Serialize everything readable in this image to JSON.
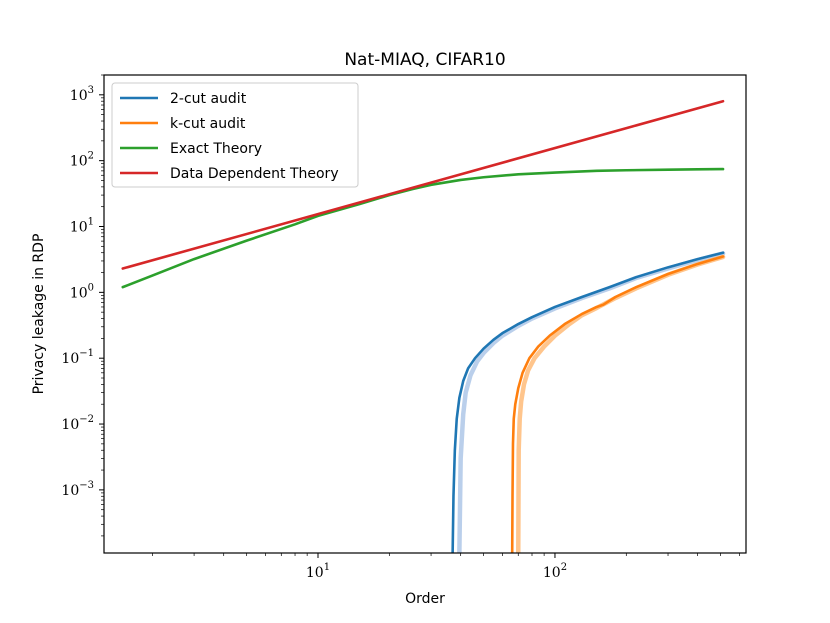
{
  "chart_data": {
    "type": "line",
    "title": "Nat-MIAQ, CIFAR10",
    "xlabel": "Order",
    "ylabel": "Privacy leakage in RDP",
    "xscale": "log",
    "yscale": "log",
    "xlim": [
      1.25,
      640
    ],
    "ylim": [
      0.00011,
      2000
    ],
    "grid": false,
    "legend_position": "top-left",
    "xticks": [
      {
        "value": 10,
        "base": "10",
        "exp": "1"
      },
      {
        "value": 100,
        "base": "10",
        "exp": "2"
      }
    ],
    "yticks": [
      {
        "value": 0.001,
        "base": "10",
        "exp": "−3"
      },
      {
        "value": 0.01,
        "base": "10",
        "exp": "−2"
      },
      {
        "value": 0.1,
        "base": "10",
        "exp": "−1"
      },
      {
        "value": 1,
        "base": "10",
        "exp": "0"
      },
      {
        "value": 10,
        "base": "10",
        "exp": "1"
      },
      {
        "value": 100,
        "base": "10",
        "exp": "2"
      },
      {
        "value": 1000,
        "base": "10",
        "exp": "3"
      }
    ],
    "series": [
      {
        "name": "2-cut audit",
        "color": "#1f77b4",
        "band_color": "#aec7e8",
        "x": [
          37,
          37.3,
          37.8,
          38.5,
          39.5,
          41,
          43,
          46,
          50,
          55,
          60,
          70,
          80,
          100,
          130,
          170,
          220,
          300,
          400,
          512
        ],
        "y": [
          0.00011,
          0.0008,
          0.004,
          0.012,
          0.025,
          0.045,
          0.07,
          0.1,
          0.14,
          0.19,
          0.24,
          0.33,
          0.42,
          0.6,
          0.85,
          1.2,
          1.7,
          2.4,
          3.2,
          4.0
        ],
        "band_x": [
          39.5,
          40,
          41,
          42,
          44,
          47,
          50,
          55,
          60,
          70,
          80,
          100,
          130,
          170,
          220,
          300,
          400,
          512
        ],
        "band_y": [
          0.00011,
          0.003,
          0.014,
          0.03,
          0.055,
          0.09,
          0.12,
          0.17,
          0.22,
          0.31,
          0.4,
          0.57,
          0.82,
          1.15,
          1.65,
          2.3,
          3.1,
          3.9
        ]
      },
      {
        "name": "k-cut audit",
        "color": "#ff7f0e",
        "band_color": "#ffbb78",
        "x": [
          66,
          66.2,
          66.5,
          67,
          68,
          70,
          73,
          78,
          85,
          95,
          110,
          130,
          150,
          160,
          180,
          220,
          300,
          400,
          512
        ],
        "y": [
          0.00011,
          0.0008,
          0.005,
          0.012,
          0.02,
          0.035,
          0.06,
          0.1,
          0.15,
          0.22,
          0.33,
          0.47,
          0.6,
          0.65,
          0.85,
          1.2,
          1.9,
          2.7,
          3.5
        ],
        "band_x": [
          70,
          70.3,
          71,
          72,
          74,
          77,
          82,
          90,
          100,
          115,
          130,
          150,
          180,
          220,
          300,
          400,
          512
        ],
        "band_y": [
          0.00011,
          0.004,
          0.012,
          0.022,
          0.04,
          0.065,
          0.1,
          0.15,
          0.22,
          0.33,
          0.45,
          0.58,
          0.82,
          1.15,
          1.85,
          2.65,
          3.45
        ]
      },
      {
        "name": "Exact Theory",
        "color": "#2ca02c",
        "x": [
          1.5,
          2,
          3,
          5,
          8,
          10,
          15,
          20,
          25,
          30,
          40,
          50,
          70,
          100,
          150,
          200,
          300,
          400,
          512
        ],
        "y": [
          1.2,
          1.8,
          3.2,
          6.1,
          10.8,
          14.5,
          22,
          30,
          37,
          43,
          51,
          56,
          62,
          66,
          70,
          71.5,
          73,
          74,
          74.5
        ],
        "band_x": [],
        "band_y": []
      },
      {
        "name": "Data Dependent Theory",
        "color": "#d62728",
        "x": [
          1.5,
          512
        ],
        "y": [
          2.3,
          800
        ],
        "band_x": [],
        "band_y": []
      }
    ]
  }
}
